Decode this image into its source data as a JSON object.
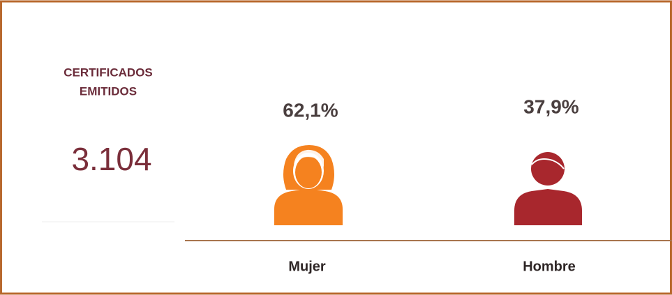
{
  "header": {
    "title_lines": [
      "CERTIFICADOS",
      "EMITIDOS"
    ],
    "total": "3.104"
  },
  "groups": [
    {
      "label": "Mujer",
      "percent": "62,1%"
    },
    {
      "label": "Hombre",
      "percent": "37,9%"
    }
  ]
}
